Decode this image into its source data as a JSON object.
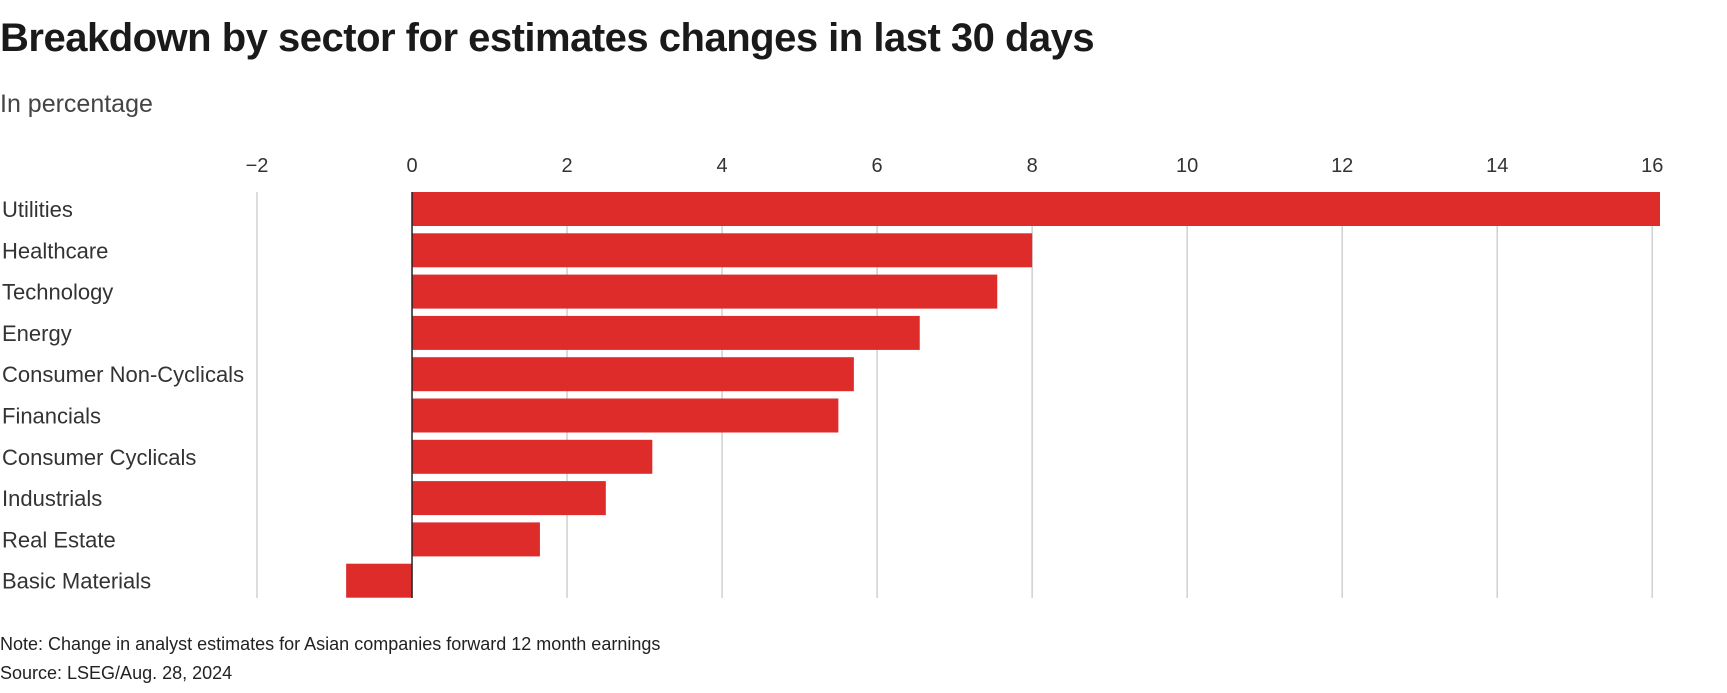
{
  "header": {
    "title": "Breakdown by sector for estimates changes in last 30 days",
    "subtitle": "In percentage"
  },
  "footer": {
    "note": "Note: Change in analyst estimates for Asian companies forward 12 month earnings",
    "source": "Source: LSEG/Aug. 28, 2024"
  },
  "colors": {
    "bar": "#dd2c2a",
    "grid": "#d0d0d0",
    "zero_line": "#222222",
    "text": "#333333"
  },
  "chart_data": {
    "type": "bar",
    "orientation": "horizontal",
    "title": "Breakdown by sector for estimates changes in last 30 days",
    "subtitle": "In percentage",
    "categories": [
      "Utilities",
      "Healthcare",
      "Technology",
      "Energy",
      "Consumer Non-Cyclicals",
      "Financials",
      "Consumer Cyclicals",
      "Industrials",
      "Real Estate",
      "Basic Materials"
    ],
    "values": [
      16.1,
      8.0,
      7.55,
      6.55,
      5.7,
      5.5,
      3.1,
      2.5,
      1.65,
      -0.85
    ],
    "xlim": [
      -2,
      16.1
    ],
    "xticks": [
      -2,
      0,
      2,
      4,
      6,
      8,
      10,
      12,
      14,
      16
    ],
    "xtick_labels": [
      "−2",
      "0",
      "2",
      "4",
      "6",
      "8",
      "10",
      "12",
      "14",
      "16"
    ],
    "grid": true,
    "xlabel": "",
    "ylabel": ""
  }
}
